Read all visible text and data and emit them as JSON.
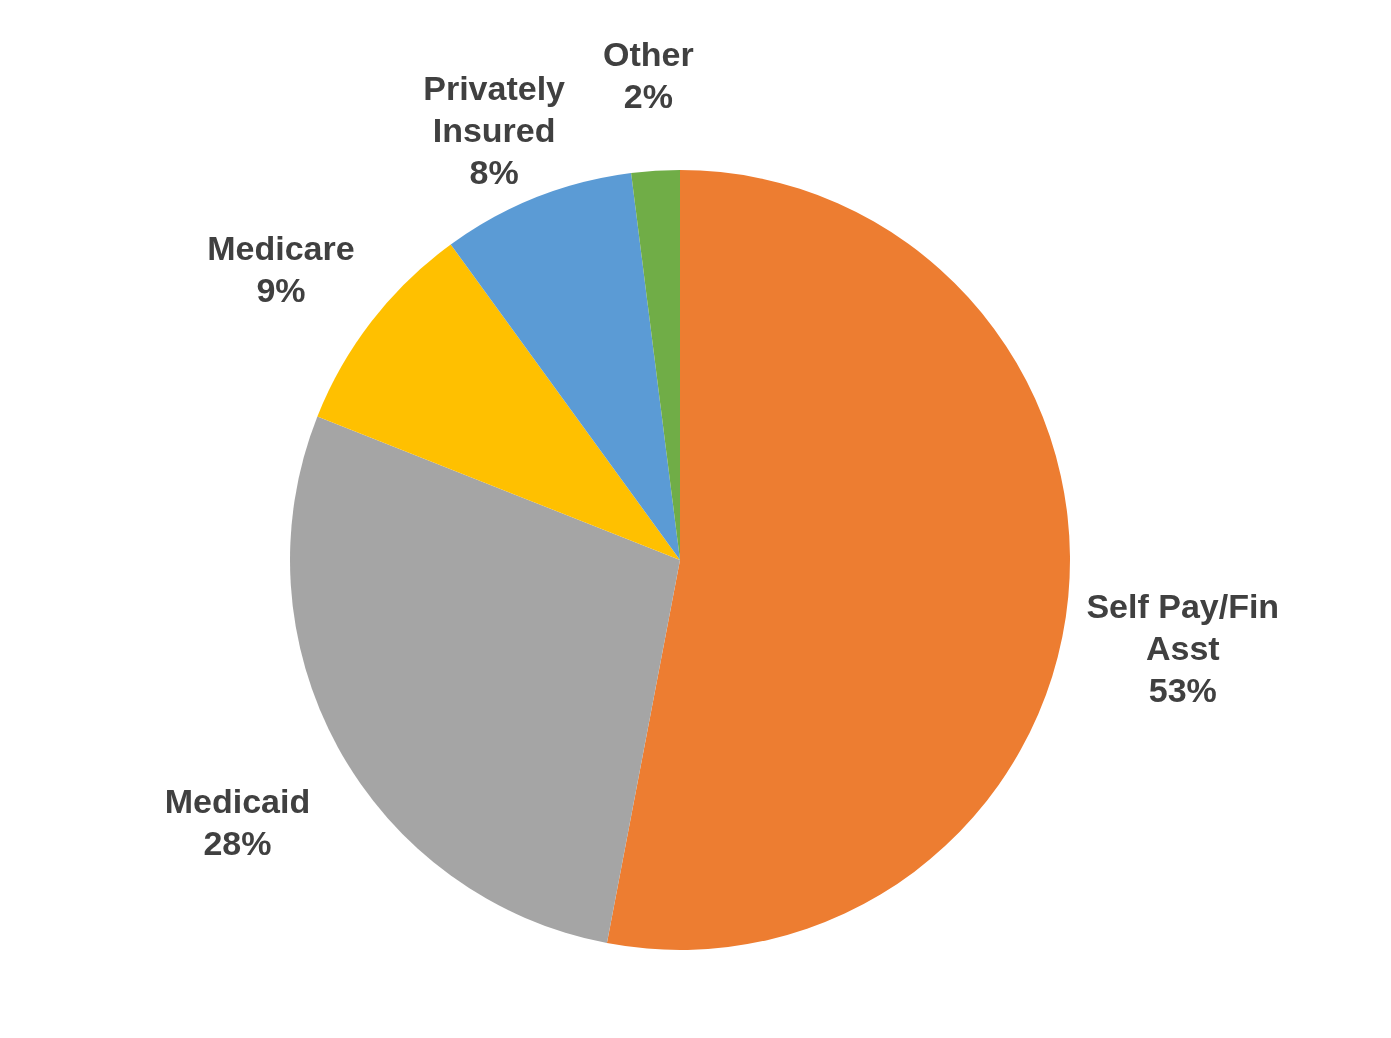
{
  "chart_data": {
    "type": "pie",
    "categories": [
      "Self Pay/Fin Asst",
      "Medicaid",
      "Medicare",
      "Privately Insured",
      "Other"
    ],
    "values": [
      53,
      28,
      9,
      8,
      2
    ],
    "colors": [
      "#ed7d31",
      "#a5a5a5",
      "#ffc000",
      "#5b9bd5",
      "#70ad47"
    ],
    "value_labels": [
      "53%",
      "28%",
      "9%",
      "8%",
      "2%"
    ]
  }
}
